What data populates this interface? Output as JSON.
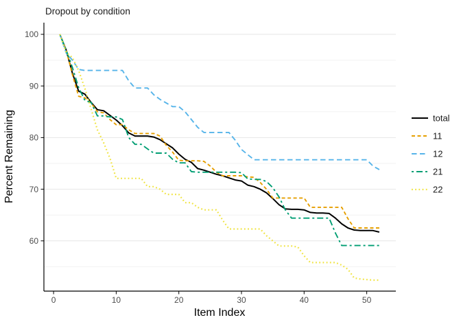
{
  "chart": {
    "title": "Dropout by condition",
    "xlabel": "Item Index",
    "ylabel": "Percent Remaining"
  },
  "chart_data": {
    "type": "line",
    "title": "Dropout by condition",
    "xlabel": "Item Index",
    "ylabel": "Percent Remaining",
    "grid": "horizontal-only",
    "legend_position": "right",
    "x_ticks": [
      0,
      10,
      20,
      30,
      40,
      50
    ],
    "y_ticks": [
      60,
      70,
      80,
      90,
      100
    ],
    "y_minor_gridlines": [
      55,
      65,
      75,
      85,
      95
    ],
    "xlim": [
      -1.5,
      54.5
    ],
    "ylim": [
      50,
      102.3
    ],
    "x": [
      1,
      2,
      3,
      4,
      5,
      6,
      7,
      8,
      9,
      10,
      11,
      12,
      13,
      14,
      15,
      16,
      17,
      18,
      19,
      20,
      21,
      22,
      23,
      24,
      25,
      26,
      27,
      28,
      29,
      30,
      31,
      32,
      33,
      34,
      35,
      36,
      37,
      38,
      39,
      40,
      41,
      42,
      43,
      44,
      45,
      46,
      47,
      48,
      49,
      50,
      51,
      52
    ],
    "series": [
      {
        "name": "total",
        "color": "#000000",
        "linetype": "solid",
        "values": [
          100,
          97.0,
          92.5,
          89.0,
          88.4,
          86.8,
          85.4,
          85.2,
          84.3,
          83.4,
          82.3,
          80.9,
          80.3,
          80.3,
          80.3,
          80.1,
          79.6,
          78.8,
          78.0,
          76.8,
          75.8,
          75.2,
          74.0,
          73.7,
          73.3,
          72.9,
          72.6,
          72.2,
          71.8,
          71.6,
          70.8,
          70.5,
          70.0,
          69.3,
          68.2,
          67.0,
          66.2,
          66.1,
          66.1,
          66.0,
          65.5,
          65.4,
          65.4,
          65.3,
          64.4,
          63.3,
          62.5,
          62.1,
          62.0,
          62.0,
          62.0,
          61.7
        ]
      },
      {
        "name": "11",
        "color": "#E69F00",
        "linetype": "dashed",
        "values": [
          100,
          97.0,
          92.2,
          88.0,
          87.7,
          86.7,
          85.0,
          84.8,
          83.5,
          82.5,
          82.5,
          81.5,
          80.8,
          80.8,
          80.8,
          80.8,
          80.3,
          78.5,
          77.2,
          75.6,
          75.5,
          75.5,
          75.5,
          75.4,
          74.5,
          73.3,
          72.6,
          72.6,
          72.6,
          72.6,
          72.4,
          72.3,
          71.3,
          70.0,
          68.3,
          68.3,
          68.3,
          68.3,
          68.3,
          68.3,
          66.5,
          66.5,
          66.5,
          66.5,
          66.5,
          66.5,
          64.3,
          62.5,
          62.5,
          62.5,
          62.5,
          62.5
        ]
      },
      {
        "name": "12",
        "color": "#56B4E9",
        "linetype": "longdash",
        "values": [
          100,
          96.4,
          95.0,
          93.2,
          93.0,
          93.0,
          93.0,
          93.0,
          93.0,
          93.0,
          93.0,
          91.0,
          89.6,
          89.6,
          89.6,
          88.3,
          87.4,
          86.7,
          86.0,
          86.0,
          85.0,
          83.5,
          82.0,
          81.0,
          81.0,
          81.0,
          81.0,
          81.0,
          79.5,
          77.7,
          76.7,
          75.7,
          75.7,
          75.7,
          75.7,
          75.7,
          75.7,
          75.7,
          75.7,
          75.7,
          75.7,
          75.7,
          75.7,
          75.7,
          75.7,
          75.7,
          75.7,
          75.7,
          75.7,
          75.7,
          74.5,
          73.8
        ]
      },
      {
        "name": "21",
        "color": "#009E73",
        "linetype": "twodash",
        "values": [
          100,
          97.0,
          93.6,
          89.7,
          87.2,
          86.8,
          84.2,
          84.2,
          84.0,
          84.0,
          83.5,
          80.0,
          78.7,
          78.7,
          77.8,
          77.0,
          77.0,
          77.0,
          75.8,
          75.1,
          75.1,
          73.4,
          73.3,
          73.3,
          73.3,
          73.3,
          73.3,
          73.3,
          73.3,
          73.2,
          72.0,
          71.9,
          71.9,
          71.5,
          70.3,
          68.5,
          66.0,
          64.4,
          64.4,
          64.4,
          64.4,
          64.4,
          64.4,
          64.4,
          61.5,
          59.1,
          59.1,
          59.1,
          59.1,
          59.1,
          59.1,
          59.1
        ]
      },
      {
        "name": "22",
        "color": "#F0E442",
        "linetype": "dotted",
        "values": [
          100,
          96.5,
          95.5,
          93.0,
          89.5,
          85.5,
          81.5,
          79.0,
          76.0,
          72.1,
          72.1,
          72.1,
          72.1,
          72.1,
          70.5,
          70.5,
          70.0,
          69.0,
          69.0,
          69.0,
          67.4,
          67.4,
          66.5,
          66.0,
          66.0,
          66.0,
          64.0,
          62.3,
          62.3,
          62.3,
          62.3,
          62.3,
          62.3,
          61.0,
          60.0,
          59.0,
          59.0,
          59.0,
          58.8,
          57.1,
          55.8,
          55.8,
          55.8,
          55.8,
          55.8,
          55.3,
          54.5,
          52.8,
          52.6,
          52.5,
          52.4,
          52.4
        ]
      }
    ]
  }
}
